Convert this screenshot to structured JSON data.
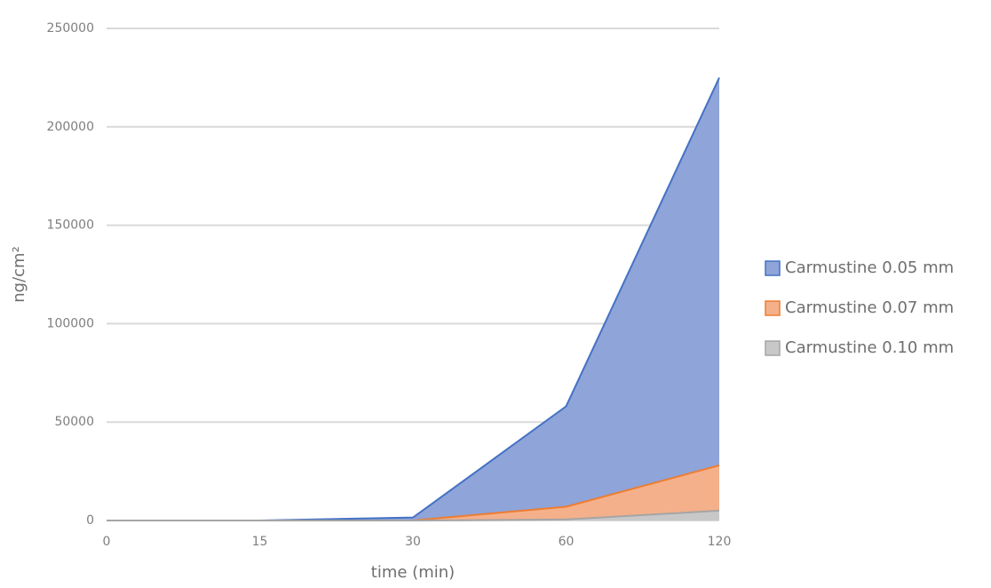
{
  "chart_data": {
    "type": "area",
    "categories": [
      "0",
      "15",
      "30",
      "60",
      "120"
    ],
    "x_label": "time (min)",
    "y_label": "ng/cm²",
    "series": [
      {
        "name": "Carmustine 0.05 mm",
        "color": "#4472c4",
        "fill": "#8fa4d8",
        "values": [
          0,
          0,
          1500,
          58000,
          225000
        ]
      },
      {
        "name": "Carmustine 0.07 mm",
        "color": "#ed7d31",
        "fill": "#f4b08a",
        "values": [
          0,
          0,
          0,
          7000,
          28000
        ]
      },
      {
        "name": "Carmustine 0.10 mm",
        "color": "#a5a5a5",
        "fill": "#c8c8c8",
        "values": [
          0,
          0,
          0,
          500,
          5000
        ]
      }
    ],
    "ylim": [
      0,
      250000
    ],
    "yticks": [
      0,
      50000,
      100000,
      150000,
      200000,
      250000
    ],
    "grid": true,
    "legend": "right"
  }
}
